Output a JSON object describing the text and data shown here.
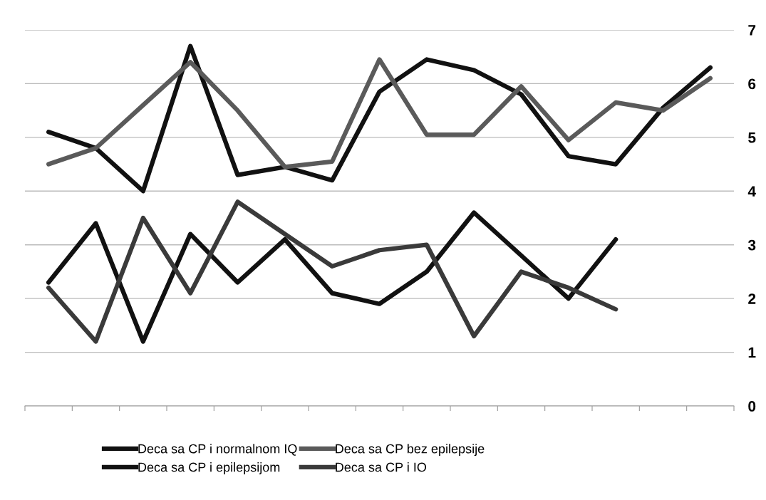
{
  "chart_data": {
    "type": "line",
    "categories": [
      null,
      null,
      null,
      null,
      null,
      null,
      null,
      null,
      null,
      null,
      null,
      null,
      null,
      null,
      null
    ],
    "series": [
      {
        "name": "Deca sa CP i normalnom IQ",
        "color": "#111111",
        "values": [
          5.1,
          4.8,
          4.0,
          6.7,
          4.3,
          4.45,
          4.2,
          5.85,
          6.45,
          6.25,
          5.8,
          4.65,
          4.5,
          5.55,
          6.3
        ]
      },
      {
        "name": "Deca sa CP bez epilepsije",
        "color": "#5a5a5a",
        "values": [
          4.5,
          4.8,
          5.6,
          6.4,
          5.5,
          4.45,
          4.55,
          6.45,
          5.05,
          5.05,
          5.95,
          4.95,
          5.65,
          5.5,
          6.1
        ]
      },
      {
        "name": "Deca sa CP i epilepsijom",
        "color": "#111111",
        "values": [
          2.3,
          3.4,
          1.2,
          3.2,
          2.3,
          3.1,
          2.1,
          1.9,
          2.5,
          3.6,
          2.8,
          2.0,
          3.1,
          null,
          null
        ]
      },
      {
        "name": "Deca sa CP i IO",
        "color": "#3a3a3a",
        "values": [
          2.2,
          1.2,
          3.5,
          2.1,
          3.8,
          3.2,
          2.6,
          2.9,
          3.0,
          1.3,
          2.5,
          2.2,
          1.8,
          null,
          null
        ]
      }
    ],
    "ylim": [
      0,
      7
    ],
    "yticks": [
      0,
      1,
      2,
      3,
      4,
      5,
      6,
      7
    ],
    "grid": "y",
    "legend": "bottom",
    "marker": "none",
    "line_style": "solid"
  }
}
